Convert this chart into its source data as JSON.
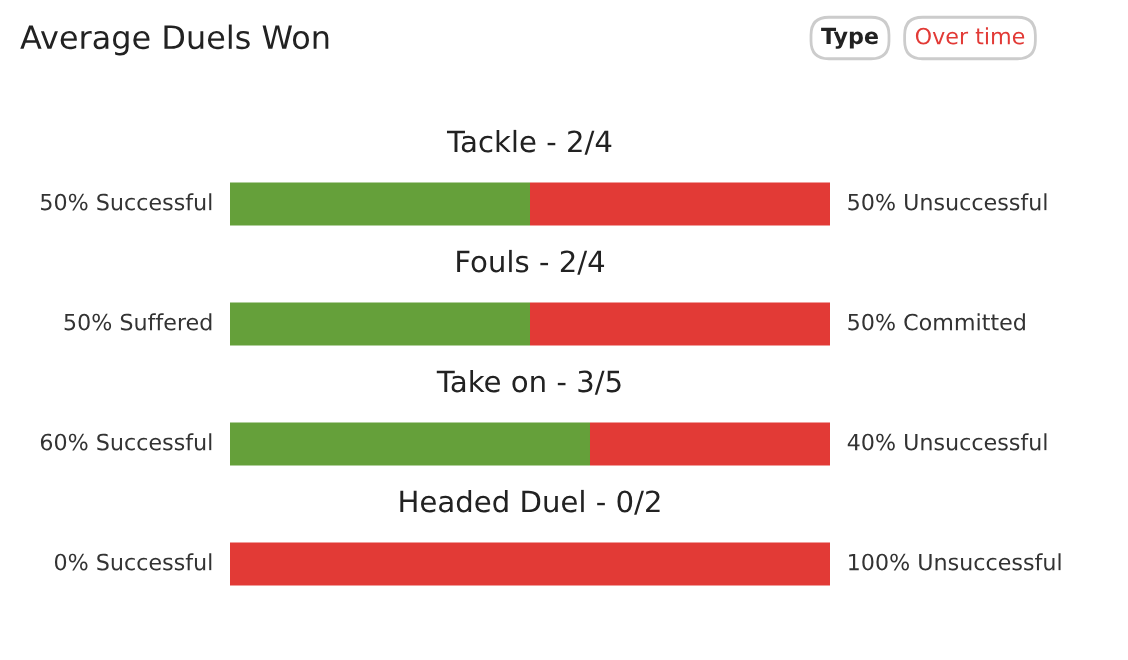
{
  "chart_data": {
    "type": "bar",
    "orientation": "horizontal",
    "stacked": true,
    "title": "Average Duels Won",
    "categories": [
      "Tackle - 2/4",
      "Fouls - 2/4",
      "Take on - 3/5",
      "Headed Duel - 0/2"
    ],
    "series": [
      {
        "color": "#65a03a",
        "values": [
          50,
          50,
          60,
          0
        ],
        "value_labels": [
          "50% Successful",
          "50% Suffered",
          "60% Successful",
          "0% Successful"
        ]
      },
      {
        "color": "#e23a36",
        "values": [
          50,
          50,
          40,
          100
        ],
        "value_labels": [
          "50% Unsuccessful",
          "50% Committed",
          "40% Unsuccessful",
          "100% Unsuccessful"
        ]
      }
    ],
    "annotations": [
      "Type",
      "Over time"
    ]
  }
}
